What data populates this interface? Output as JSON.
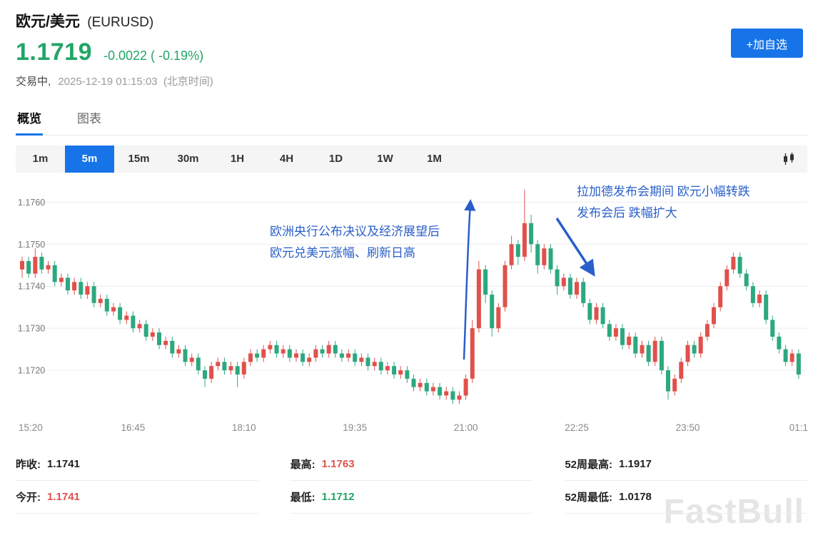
{
  "header": {
    "title": "欧元/美元",
    "symbol": "(EURUSD)",
    "price": "1.1719",
    "change": "-0.0022 ( -0.19%)",
    "status": "交易中,",
    "datetime": "2025-12-19 01:15:03",
    "timezone": "(北京时间)",
    "add_button": "+加自选"
  },
  "tabs": {
    "overview": "概览",
    "chart": "图表"
  },
  "timeframes": {
    "items": [
      "1m",
      "5m",
      "15m",
      "30m",
      "1H",
      "4H",
      "1D",
      "1W",
      "1M"
    ],
    "active": "5m"
  },
  "annotations": [
    {
      "text": "欧洲央行公布决议及经济展望后\n欧元兑美元涨幅、刷新日高"
    },
    {
      "text": "拉加德发布会期间 欧元小幅转跌\n发布会后 跌幅扩大"
    }
  ],
  "stats": {
    "cols": [
      [
        {
          "label": "昨收:",
          "value": "1.1741",
          "color": "#222222"
        },
        {
          "label": "今开:",
          "value": "1.1741",
          "color": "#e0514c"
        }
      ],
      [
        {
          "label": "最高:",
          "value": "1.1763",
          "color": "#e0514c"
        },
        {
          "label": "最低:",
          "value": "1.1712",
          "color": "#21a567"
        }
      ],
      [
        {
          "label": "52周最高:",
          "value": "1.1917",
          "color": "#222222"
        },
        {
          "label": "52周最低:",
          "value": "1.0178",
          "color": "#222222"
        }
      ]
    ]
  },
  "watermark": "FastBull",
  "colors": {
    "up": "#e0514c",
    "down": "#2ca87f",
    "accent_blue": "#1774e8",
    "price_green": "#21a567",
    "annotation_blue": "#2a5fc9"
  },
  "chart_data": {
    "type": "candlestick",
    "title": "EURUSD 5分钟K线",
    "interval": "5m",
    "start_time": "15:20",
    "y_ticks": [
      1.176,
      1.175,
      1.174,
      1.173,
      1.172
    ],
    "y_range": [
      1.171,
      1.1766
    ],
    "x_labels": [
      {
        "i": 0,
        "label": "15:20"
      },
      {
        "i": 17,
        "label": "16:45"
      },
      {
        "i": 34,
        "label": "18:10"
      },
      {
        "i": 51,
        "label": "19:35"
      },
      {
        "i": 68,
        "label": "21:00"
      },
      {
        "i": 85,
        "label": "22:25"
      },
      {
        "i": 102,
        "label": "23:50"
      },
      {
        "i": 119,
        "label": "01:1"
      }
    ],
    "candles": [
      [
        1.1744,
        1.1747,
        1.1742,
        1.1746
      ],
      [
        1.1746,
        1.1747,
        1.1742,
        1.1743
      ],
      [
        1.1743,
        1.1749,
        1.1742,
        1.1747
      ],
      [
        1.1747,
        1.1748,
        1.1743,
        1.1744
      ],
      [
        1.1744,
        1.1746,
        1.1743,
        1.1745
      ],
      [
        1.1745,
        1.1746,
        1.174,
        1.1741
      ],
      [
        1.1741,
        1.1743,
        1.174,
        1.1742
      ],
      [
        1.1742,
        1.1743,
        1.1738,
        1.1739
      ],
      [
        1.1739,
        1.1742,
        1.1738,
        1.1741
      ],
      [
        1.1741,
        1.1742,
        1.1737,
        1.1738
      ],
      [
        1.1738,
        1.1741,
        1.1737,
        1.174
      ],
      [
        1.174,
        1.1741,
        1.1735,
        1.1736
      ],
      [
        1.1736,
        1.1738,
        1.1735,
        1.1737
      ],
      [
        1.1737,
        1.1738,
        1.1733,
        1.1734
      ],
      [
        1.1734,
        1.1736,
        1.1733,
        1.1735
      ],
      [
        1.1735,
        1.1736,
        1.1731,
        1.1732
      ],
      [
        1.1732,
        1.1734,
        1.1731,
        1.1733
      ],
      [
        1.1733,
        1.1734,
        1.1729,
        1.173
      ],
      [
        1.173,
        1.1732,
        1.1729,
        1.1731
      ],
      [
        1.1731,
        1.1732,
        1.1727,
        1.1728
      ],
      [
        1.1728,
        1.173,
        1.1727,
        1.1729
      ],
      [
        1.1729,
        1.173,
        1.1725,
        1.1726
      ],
      [
        1.1726,
        1.1728,
        1.1725,
        1.1727
      ],
      [
        1.1727,
        1.1728,
        1.1723,
        1.1724
      ],
      [
        1.1724,
        1.1726,
        1.1723,
        1.1725
      ],
      [
        1.1725,
        1.1726,
        1.1721,
        1.1722
      ],
      [
        1.1722,
        1.1724,
        1.1721,
        1.1723
      ],
      [
        1.1723,
        1.1724,
        1.1719,
        1.172
      ],
      [
        1.172,
        1.1721,
        1.1716,
        1.1718
      ],
      [
        1.1718,
        1.1722,
        1.1717,
        1.1721
      ],
      [
        1.1721,
        1.1723,
        1.172,
        1.1722
      ],
      [
        1.1722,
        1.1723,
        1.1719,
        1.172
      ],
      [
        1.172,
        1.1722,
        1.1719,
        1.1721
      ],
      [
        1.1721,
        1.1722,
        1.1716,
        1.1719
      ],
      [
        1.1719,
        1.1723,
        1.1718,
        1.1722
      ],
      [
        1.1722,
        1.1725,
        1.1721,
        1.1724
      ],
      [
        1.1724,
        1.1725,
        1.1722,
        1.1723
      ],
      [
        1.1723,
        1.1726,
        1.1722,
        1.1725
      ],
      [
        1.1725,
        1.1727,
        1.1724,
        1.1726
      ],
      [
        1.1726,
        1.1727,
        1.1723,
        1.1724
      ],
      [
        1.1724,
        1.1726,
        1.1723,
        1.1725
      ],
      [
        1.1725,
        1.1726,
        1.1722,
        1.1723
      ],
      [
        1.1723,
        1.1725,
        1.1722,
        1.1724
      ],
      [
        1.1724,
        1.1725,
        1.1721,
        1.1722
      ],
      [
        1.1722,
        1.1724,
        1.1721,
        1.1723
      ],
      [
        1.1723,
        1.1726,
        1.1722,
        1.1725
      ],
      [
        1.1725,
        1.1726,
        1.1723,
        1.1724
      ],
      [
        1.1724,
        1.1727,
        1.1723,
        1.1726
      ],
      [
        1.1726,
        1.1727,
        1.1723,
        1.1724
      ],
      [
        1.1724,
        1.1725,
        1.1722,
        1.1723
      ],
      [
        1.1723,
        1.1725,
        1.1722,
        1.1724
      ],
      [
        1.1724,
        1.1725,
        1.1721,
        1.1722
      ],
      [
        1.1722,
        1.1724,
        1.1721,
        1.1723
      ],
      [
        1.1723,
        1.1724,
        1.172,
        1.1721
      ],
      [
        1.1721,
        1.1723,
        1.172,
        1.1722
      ],
      [
        1.1722,
        1.1723,
        1.1719,
        1.172
      ],
      [
        1.172,
        1.1722,
        1.1719,
        1.1721
      ],
      [
        1.1721,
        1.1722,
        1.1718,
        1.1719
      ],
      [
        1.1719,
        1.1721,
        1.1718,
        1.172
      ],
      [
        1.172,
        1.1721,
        1.1717,
        1.1718
      ],
      [
        1.1718,
        1.1719,
        1.1715,
        1.1716
      ],
      [
        1.1716,
        1.1718,
        1.1715,
        1.1717
      ],
      [
        1.1717,
        1.1718,
        1.1714,
        1.1715
      ],
      [
        1.1715,
        1.1717,
        1.1714,
        1.1716
      ],
      [
        1.1716,
        1.1717,
        1.1713,
        1.1714
      ],
      [
        1.1714,
        1.1716,
        1.1713,
        1.1715
      ],
      [
        1.1715,
        1.1716,
        1.1712,
        1.1713
      ],
      [
        1.1713,
        1.1715,
        1.1712,
        1.1714
      ],
      [
        1.1714,
        1.1719,
        1.1713,
        1.1718
      ],
      [
        1.1718,
        1.1732,
        1.1717,
        1.173
      ],
      [
        1.173,
        1.1746,
        1.1729,
        1.1744
      ],
      [
        1.1744,
        1.1745,
        1.1736,
        1.1738
      ],
      [
        1.1738,
        1.1739,
        1.1728,
        1.173
      ],
      [
        1.173,
        1.1736,
        1.1729,
        1.1735
      ],
      [
        1.1735,
        1.1746,
        1.1734,
        1.1745
      ],
      [
        1.1745,
        1.1752,
        1.1744,
        1.175
      ],
      [
        1.175,
        1.1751,
        1.1745,
        1.1747
      ],
      [
        1.1747,
        1.1763,
        1.1746,
        1.1755
      ],
      [
        1.1755,
        1.1757,
        1.1748,
        1.175
      ],
      [
        1.175,
        1.1751,
        1.1743,
        1.1745
      ],
      [
        1.1745,
        1.175,
        1.1744,
        1.1749
      ],
      [
        1.1749,
        1.175,
        1.1743,
        1.1744
      ],
      [
        1.1744,
        1.1745,
        1.1738,
        1.174
      ],
      [
        1.174,
        1.1743,
        1.1739,
        1.1742
      ],
      [
        1.1742,
        1.1743,
        1.1737,
        1.1738
      ],
      [
        1.1738,
        1.1742,
        1.1737,
        1.1741
      ],
      [
        1.1741,
        1.1742,
        1.1735,
        1.1736
      ],
      [
        1.1736,
        1.1737,
        1.1731,
        1.1732
      ],
      [
        1.1732,
        1.1736,
        1.1731,
        1.1735
      ],
      [
        1.1735,
        1.1736,
        1.173,
        1.1731
      ],
      [
        1.1731,
        1.1732,
        1.1727,
        1.1728
      ],
      [
        1.1728,
        1.1731,
        1.1727,
        1.173
      ],
      [
        1.173,
        1.1731,
        1.1725,
        1.1726
      ],
      [
        1.1726,
        1.1729,
        1.1725,
        1.1728
      ],
      [
        1.1728,
        1.1729,
        1.1723,
        1.1724
      ],
      [
        1.1724,
        1.1727,
        1.1723,
        1.1726
      ],
      [
        1.1726,
        1.1727,
        1.1721,
        1.1722
      ],
      [
        1.1722,
        1.1728,
        1.1721,
        1.1727
      ],
      [
        1.1727,
        1.1728,
        1.1719,
        1.172
      ],
      [
        1.172,
        1.1721,
        1.1713,
        1.1715
      ],
      [
        1.1715,
        1.1719,
        1.1714,
        1.1718
      ],
      [
        1.1718,
        1.1723,
        1.1717,
        1.1722
      ],
      [
        1.1722,
        1.1727,
        1.1721,
        1.1726
      ],
      [
        1.1726,
        1.1727,
        1.1723,
        1.1724
      ],
      [
        1.1724,
        1.1729,
        1.1723,
        1.1728
      ],
      [
        1.1728,
        1.1732,
        1.1727,
        1.1731
      ],
      [
        1.1731,
        1.1736,
        1.173,
        1.1735
      ],
      [
        1.1735,
        1.1741,
        1.1734,
        1.174
      ],
      [
        1.174,
        1.1745,
        1.1739,
        1.1744
      ],
      [
        1.1744,
        1.1748,
        1.1743,
        1.1747
      ],
      [
        1.1747,
        1.1748,
        1.1742,
        1.1743
      ],
      [
        1.1743,
        1.1744,
        1.1739,
        1.174
      ],
      [
        1.174,
        1.1741,
        1.1735,
        1.1736
      ],
      [
        1.1736,
        1.1739,
        1.1735,
        1.1738
      ],
      [
        1.1738,
        1.1739,
        1.1731,
        1.1732
      ],
      [
        1.1732,
        1.1733,
        1.1727,
        1.1728
      ],
      [
        1.1728,
        1.1729,
        1.1724,
        1.1725
      ],
      [
        1.1725,
        1.1726,
        1.1721,
        1.1722
      ],
      [
        1.1722,
        1.1725,
        1.1721,
        1.1724
      ],
      [
        1.1724,
        1.1725,
        1.1718,
        1.1719
      ]
    ]
  }
}
